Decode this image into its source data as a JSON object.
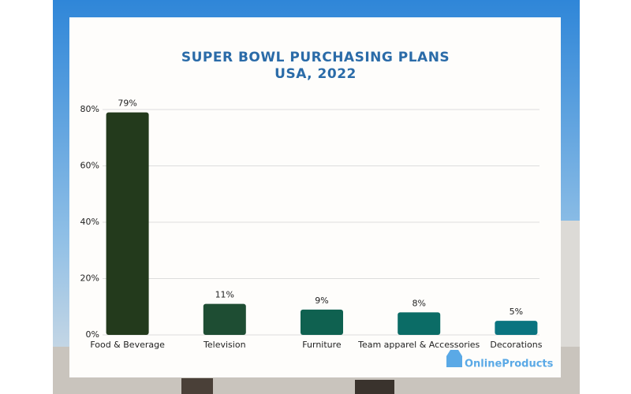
{
  "chart_data": {
    "type": "bar",
    "title": "SUPER BOWL PURCHASING PLANS",
    "subtitle": "USA, 2022",
    "categories": [
      "Food & Beverage",
      "Television",
      "Furniture",
      "Team apparel & Accessories",
      "Decorations"
    ],
    "values": [
      79,
      11,
      9,
      8,
      5
    ],
    "value_labels": [
      "79%",
      "11%",
      "9%",
      "8%",
      "5%"
    ],
    "colors": [
      "#233a1c",
      "#1e4d33",
      "#0f6150",
      "#0b6c66",
      "#0a7480"
    ],
    "ylim": [
      0,
      80
    ],
    "yticks": [
      {
        "value": 0,
        "label": "0%"
      },
      {
        "value": 20,
        "label": "20%"
      },
      {
        "value": 40,
        "label": "40%"
      },
      {
        "value": 60,
        "label": "60%"
      },
      {
        "value": 80,
        "label": "80%"
      }
    ],
    "grid": true
  },
  "brand": "OnlineProducts"
}
